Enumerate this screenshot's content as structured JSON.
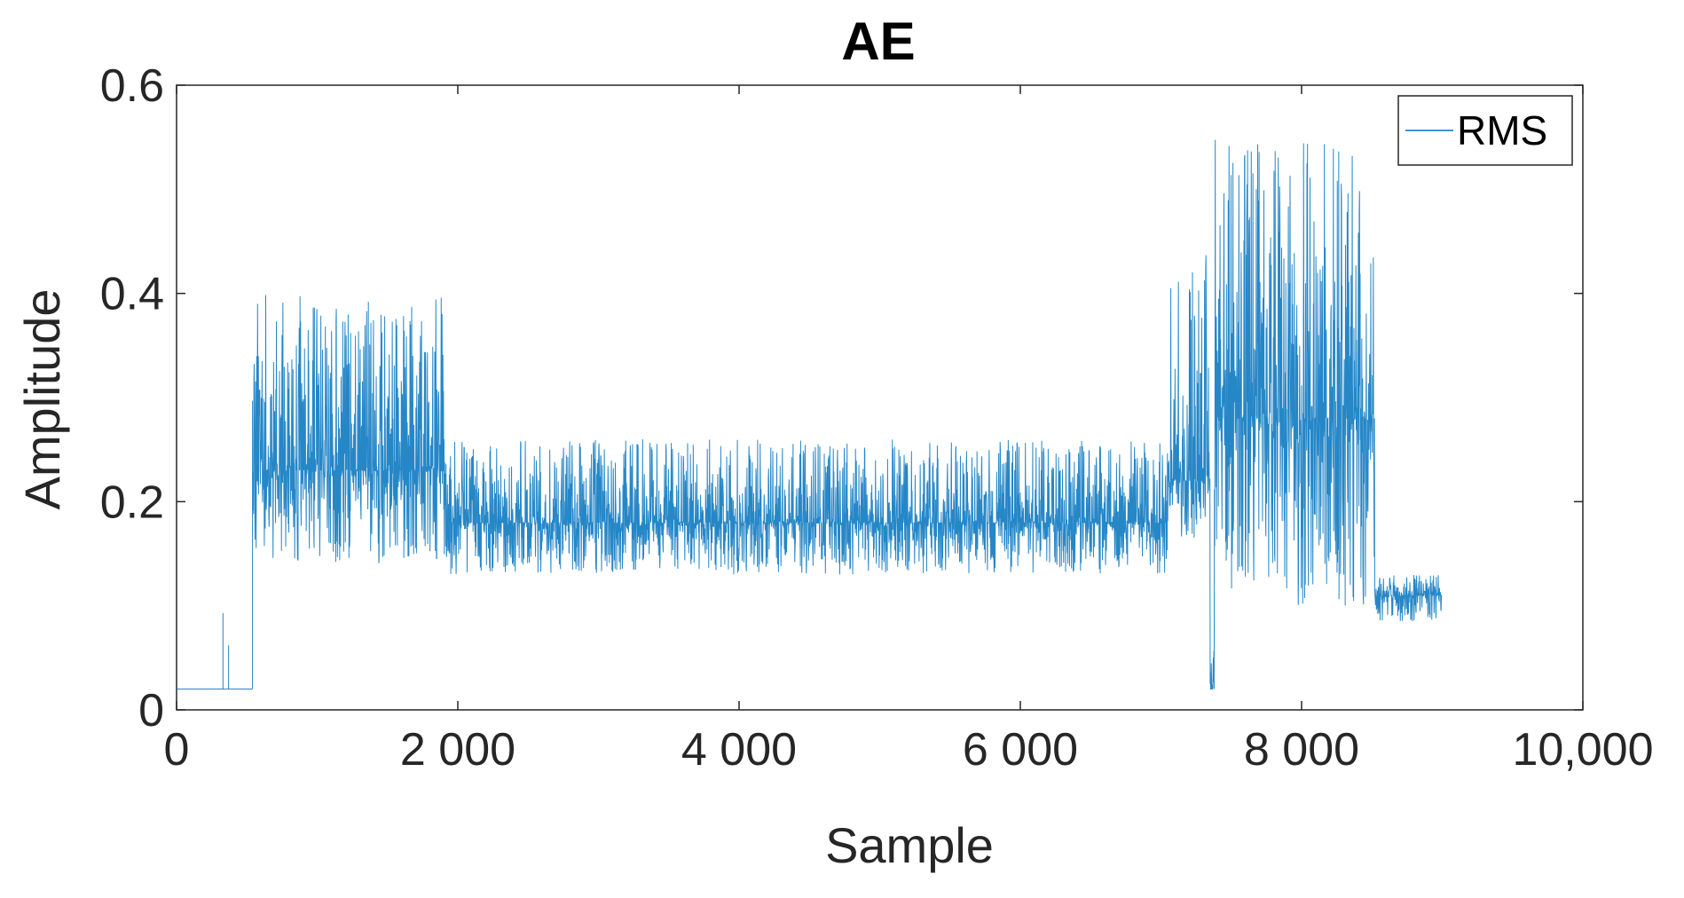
{
  "chart_data": {
    "type": "line",
    "title": "AE",
    "xlabel": "Sample",
    "ylabel": "Amplitude",
    "xlim": [
      0,
      10000
    ],
    "ylim": [
      0,
      0.6
    ],
    "xticks": [
      0,
      2000,
      4000,
      6000,
      8000,
      10000
    ],
    "xtick_labels": [
      "0",
      "2 000",
      "4 000",
      "6 000",
      "8 000",
      "10,000"
    ],
    "yticks": [
      0,
      0.2,
      0.4,
      0.6
    ],
    "ytick_labels": [
      "0",
      "0.2",
      "0.4",
      "0.6"
    ],
    "grid": false,
    "legend_position": "top-right",
    "series": [
      {
        "name": "RMS",
        "color": "#0072BD",
        "description_segments": [
          {
            "x_start": 0,
            "x_end": 540,
            "level": 0.02,
            "band": [
              0.02,
              0.02
            ],
            "spikes": [
              [
                330,
                0.093
              ],
              [
                370,
                0.062
              ]
            ]
          },
          {
            "x_start": 540,
            "x_end": 1900,
            "level": 0.23,
            "band": [
              0.14,
              0.4
            ]
          },
          {
            "x_start": 1900,
            "x_end": 7050,
            "level": 0.18,
            "band": [
              0.13,
              0.26
            ]
          },
          {
            "x_start": 7050,
            "x_end": 7350,
            "level": 0.22,
            "band": [
              0.16,
              0.45
            ]
          },
          {
            "x_start": 7350,
            "x_end": 7380,
            "level": 0.02,
            "band": [
              0.02,
              0.07
            ]
          },
          {
            "x_start": 7380,
            "x_end": 8520,
            "level": 0.28,
            "band": [
              0.1,
              0.55
            ]
          },
          {
            "x_start": 8520,
            "x_end": 9000,
            "level": 0.11,
            "band": [
              0.085,
              0.13
            ]
          }
        ]
      }
    ]
  }
}
